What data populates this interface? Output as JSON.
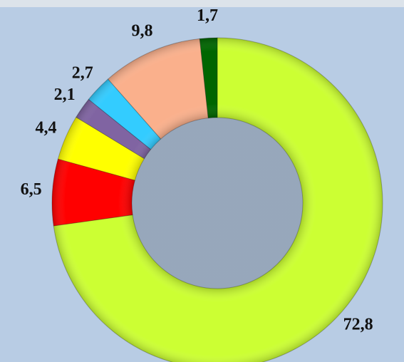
{
  "chart_data": {
    "type": "donut",
    "values": [
      72.8,
      6.5,
      4.4,
      2.1,
      2.7,
      9.8,
      1.7
    ],
    "value_labels": [
      "72,8",
      "6,5",
      "4,4",
      "2,1",
      "2,7",
      "9,8",
      "1,7"
    ],
    "colors": [
      "#ccff33",
      "#ff0000",
      "#ffff00",
      "#8064a2",
      "#33ccff",
      "#fab08c",
      "#006600"
    ]
  }
}
